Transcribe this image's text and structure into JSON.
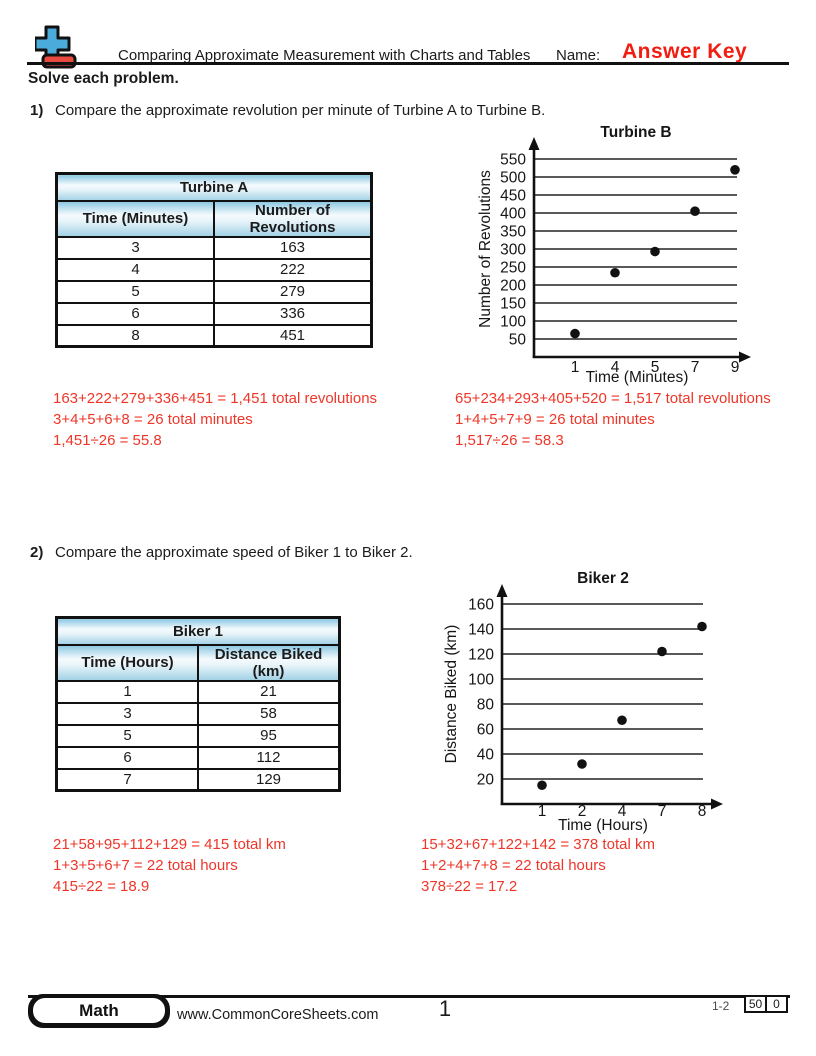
{
  "header": {
    "title": "Comparing Approximate Measurement with Charts and Tables",
    "name_label": "Name:",
    "name_value": "Answer Key",
    "instructions": "Solve each problem."
  },
  "icons": {
    "logo": "plus-minus-logo-icon"
  },
  "colors": {
    "answer_red": "#ee3629",
    "answer_key_red": "#f21c10",
    "table_header_blue": "#a3d2e6",
    "logo_blue": "#4bacdc",
    "logo_red": "#e84a3f",
    "ink": "#111111"
  },
  "problems": [
    {
      "number": "1)",
      "question": "Compare the approximate revolution per minute of Turbine A to Turbine B.",
      "table": {
        "title": "Turbine A",
        "columns": [
          "Time (Minutes)",
          "Number of Revolutions"
        ],
        "rows": [
          [
            "3",
            "163"
          ],
          [
            "4",
            "222"
          ],
          [
            "5",
            "279"
          ],
          [
            "6",
            "336"
          ],
          [
            "8",
            "451"
          ]
        ]
      },
      "answers_left": [
        "163+222+279+336+451 = 1,451 total revolutions",
        "3+4+5+6+8 = 26 total minutes",
        "1,451÷26 = 55.8"
      ],
      "answers_right": [
        "65+234+293+405+520 = 1,517 total revolutions",
        "1+4+5+7+9 = 26 total minutes",
        "1,517÷26 = 58.3"
      ]
    },
    {
      "number": "2)",
      "question": "Compare the approximate speed of Biker 1 to Biker 2.",
      "table": {
        "title": "Biker 1",
        "columns": [
          "Time (Hours)",
          "Distance Biked (km)"
        ],
        "rows": [
          [
            "1",
            "21"
          ],
          [
            "3",
            "58"
          ],
          [
            "5",
            "95"
          ],
          [
            "6",
            "112"
          ],
          [
            "7",
            "129"
          ]
        ]
      },
      "answers_left": [
        "21+58+95+112+129 = 415 total km",
        "1+3+5+6+7 = 22 total hours",
        "415÷22 = 18.9"
      ],
      "answers_right": [
        "15+32+67+122+142 = 378 total km",
        "1+2+4+7+8 = 22 total hours",
        "378÷22 = 17.2"
      ]
    }
  ],
  "chart_data": [
    {
      "type": "scatter",
      "title": "Turbine B",
      "xlabel": "Time (Minutes)",
      "ylabel": "Number of Revolutions",
      "x": [
        1,
        4,
        5,
        7,
        9
      ],
      "y": [
        65,
        234,
        293,
        405,
        520
      ],
      "yticks": [
        550,
        500,
        450,
        400,
        350,
        300,
        250,
        200,
        150,
        100,
        50
      ],
      "ylim": [
        0,
        575
      ],
      "grid": "horizontal",
      "legend": "none"
    },
    {
      "type": "scatter",
      "title": "Biker 2",
      "xlabel": "Time (Hours)",
      "ylabel": "Distance Biked (km)",
      "x": [
        1,
        2,
        4,
        7,
        8
      ],
      "y": [
        15,
        32,
        67,
        122,
        142
      ],
      "yticks": [
        160,
        140,
        120,
        100,
        80,
        60,
        40,
        20
      ],
      "ylim": [
        0,
        170
      ],
      "grid": "horizontal",
      "legend": "none"
    }
  ],
  "footer": {
    "subject": "Math",
    "website": "www.CommonCoreSheets.com",
    "page_number": "1",
    "problem_range": "1-2",
    "score_boxes": [
      "50",
      "0"
    ]
  }
}
